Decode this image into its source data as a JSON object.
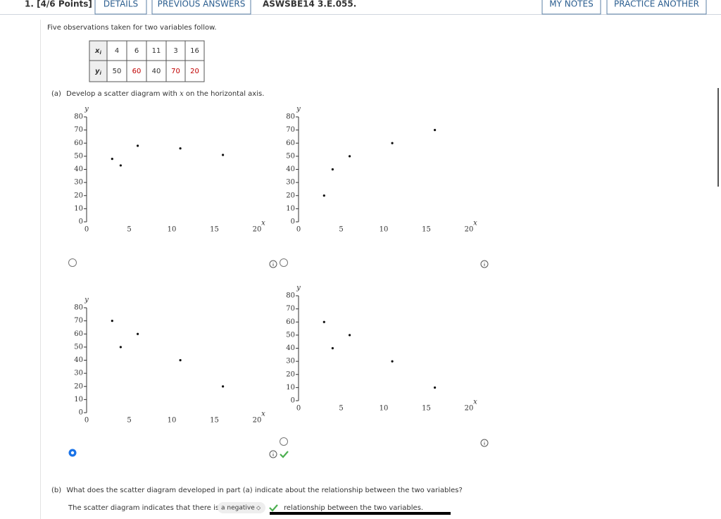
{
  "header": {
    "question": "1. [4/6 Points]",
    "buttons": [
      "DETAILS",
      "PREVIOUS ANSWERS"
    ],
    "code": "ASWSBE14 3.E.055.",
    "tools": [
      "MY NOTES",
      "PRACTICE ANOTHER"
    ]
  },
  "intro": "Five observations taken for two variables follow.",
  "table": {
    "rows": [
      {
        "var": "x",
        "sub": "i",
        "values": [
          4,
          6,
          11,
          3,
          16
        ],
        "colors": [
          "#333333",
          "#333333",
          "#333333",
          "#333333",
          "#333333"
        ]
      },
      {
        "var": "y",
        "sub": "i",
        "values": [
          50,
          60,
          40,
          70,
          20
        ],
        "colors": [
          "#333333",
          "#c00000",
          "#333333",
          "#c00000",
          "#c00000"
        ]
      }
    ]
  },
  "part_a": {
    "label": "(a)",
    "text_before": "Develop a scatter diagram with",
    "variable": "x",
    "text_after": "on the horizontal axis."
  },
  "chart_data": [
    {
      "type": "scatter",
      "x_label": "x",
      "y_label": "y",
      "xlim": [
        0,
        20
      ],
      "ylim": [
        0,
        80
      ],
      "xticks": [
        0,
        5,
        10,
        15,
        20
      ],
      "yticks": [
        0,
        10,
        20,
        30,
        40,
        50,
        60,
        70,
        80
      ],
      "x": [
        3,
        4,
        6,
        11,
        16
      ],
      "y": [
        48,
        43,
        58,
        56,
        51
      ],
      "color": "#111111",
      "selected": false
    },
    {
      "type": "scatter",
      "x_label": "x",
      "y_label": "y",
      "xlim": [
        0,
        20
      ],
      "ylim": [
        0,
        80
      ],
      "xticks": [
        0,
        5,
        10,
        15,
        20
      ],
      "yticks": [
        0,
        10,
        20,
        30,
        40,
        50,
        60,
        70,
        80
      ],
      "x": [
        3,
        4,
        6,
        11,
        16
      ],
      "y": [
        20,
        40,
        50,
        60,
        70
      ],
      "color": "#111111",
      "selected": false
    },
    {
      "type": "scatter",
      "x_label": "x",
      "y_label": "y",
      "xlim": [
        0,
        20
      ],
      "ylim": [
        0,
        80
      ],
      "xticks": [
        0,
        5,
        10,
        15,
        20
      ],
      "yticks": [
        0,
        10,
        20,
        30,
        40,
        50,
        60,
        70,
        80
      ],
      "x": [
        3,
        4,
        6,
        11,
        16
      ],
      "y": [
        70,
        50,
        60,
        40,
        20
      ],
      "color": "#111111",
      "selected": true
    },
    {
      "type": "scatter",
      "x_label": "x",
      "y_label": "y",
      "xlim": [
        0,
        20
      ],
      "ylim": [
        0,
        80
      ],
      "xticks": [
        0,
        5,
        10,
        15,
        20
      ],
      "yticks": [
        0,
        10,
        20,
        30,
        40,
        50,
        60,
        70,
        80
      ],
      "x": [
        3,
        4,
        6,
        11,
        16
      ],
      "y": [
        60,
        40,
        50,
        30,
        10
      ],
      "color": "#111111",
      "selected": false
    }
  ],
  "part_b": {
    "label": "(b)",
    "question": "What does the scatter diagram developed in part (a) indicate about the relationship between the two variables?",
    "answer_before": "The scatter diagram indicates that there is",
    "answer": "a negative",
    "answer_after": "relationship between the two variables."
  }
}
